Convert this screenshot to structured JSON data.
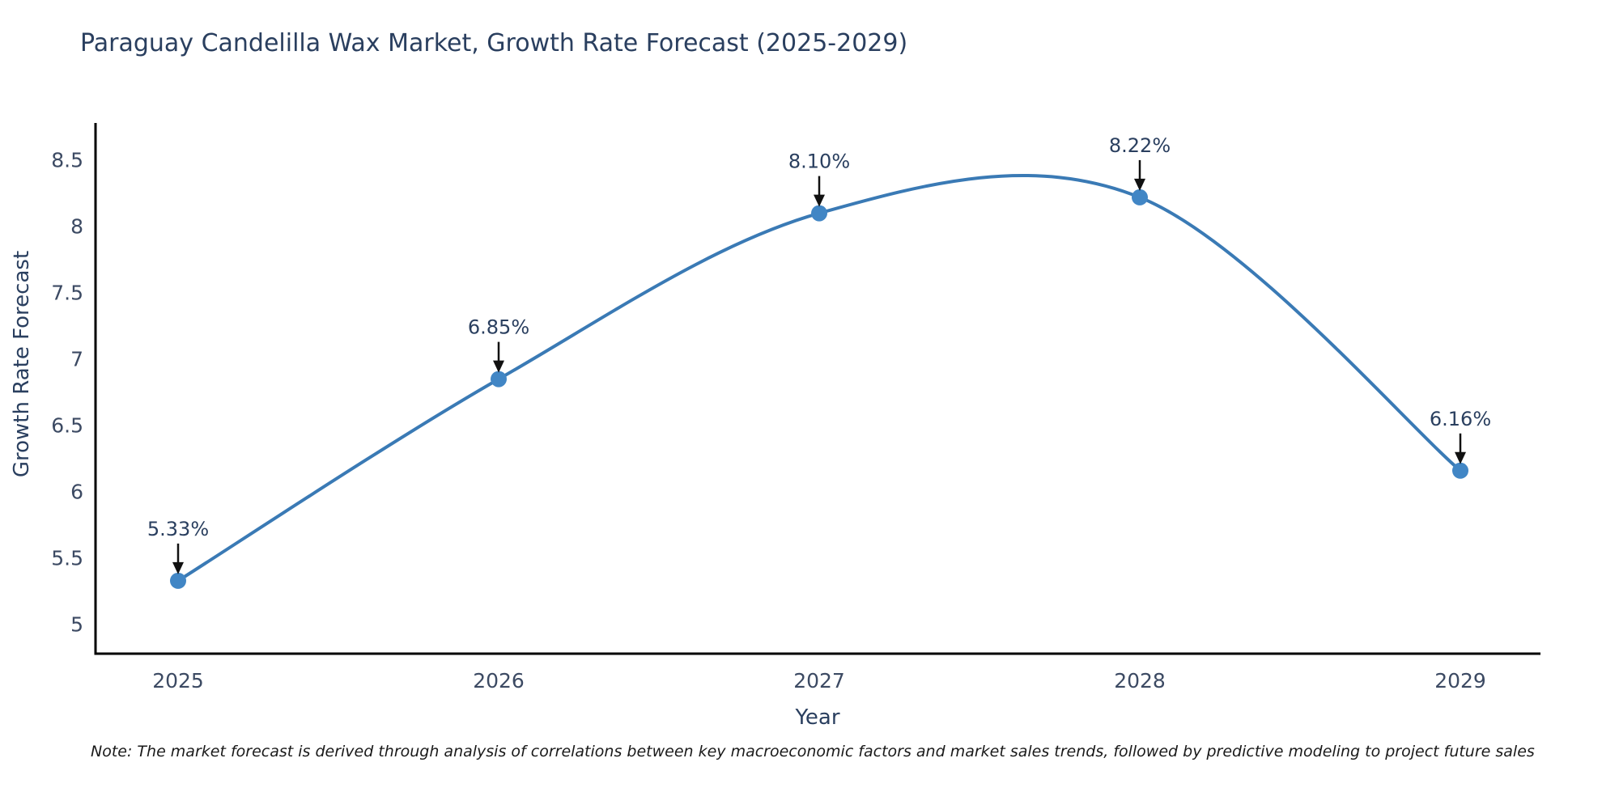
{
  "title": "Paraguay Candelilla Wax Market, Growth Rate Forecast (2025-2029)",
  "chart_data": {
    "type": "line",
    "x": [
      "2025",
      "2026",
      "2027",
      "2028",
      "2029"
    ],
    "values": [
      5.33,
      6.85,
      8.1,
      8.22,
      6.16
    ],
    "point_labels": [
      "5.33%",
      "6.85%",
      "8.10%",
      "8.22%",
      "6.16%"
    ],
    "title": "Paraguay Candelilla Wax Market, Growth Rate Forecast (2025-2029)",
    "xlabel": "Year",
    "ylabel": "Growth Rate Forecast",
    "ylim": [
      5,
      8.5
    ],
    "yticks": [
      5,
      5.5,
      6,
      6.5,
      7,
      7.5,
      8,
      8.5
    ],
    "grid": false,
    "legend": "none",
    "line_shape": "spline",
    "annotation_style": "value labels above points with downward black arrows"
  },
  "note": "Note: The market forecast is derived through analysis of correlations between key macroeconomic factors and market sales trends, followed by predictive modeling to project future sales",
  "colors": {
    "line": "#3a7ab5",
    "marker": "#4186c5",
    "text": "#2a3f5f",
    "tick_text": "#3c4a63",
    "arrow": "#111111",
    "axis": "#000000",
    "background": "#ffffff"
  }
}
